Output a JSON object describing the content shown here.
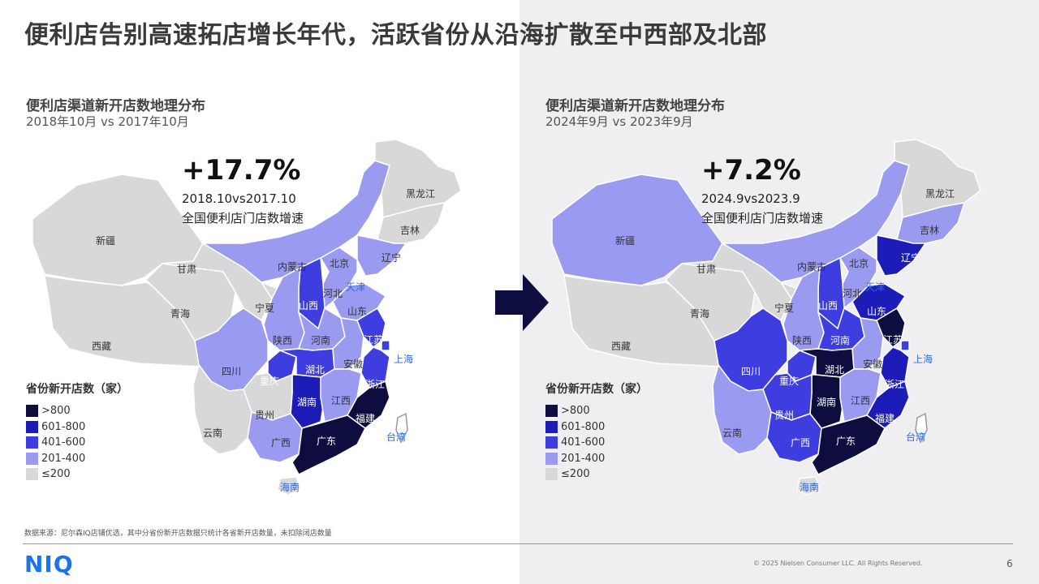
{
  "title": "便利店告别高速拓店增长年代，活跃省份从沿海扩散至中西部及北部",
  "colors": {
    "gt800": "#0d0d3f",
    "r601_800": "#1c1cb8",
    "r401_600": "#3d3de0",
    "r201_400": "#9a9af0",
    "le200": "#d8d8d8",
    "accent": "#2d6cdf"
  },
  "legend": {
    "title": "省份新开店数（家）",
    "items": [
      "&gt;800",
      "601-800",
      "401-600",
      "201-400",
      "≤200"
    ]
  },
  "maps": [
    {
      "title": "便利店渠道新开店数地理分布",
      "subtitle": "2018年10月 vs 2017年10月",
      "growth": "+17.7%",
      "growth_period": "2018.10vs2017.10",
      "growth_label": "全国便利店门店数增速",
      "provinces": {
        "新疆": "le200",
        "西藏": "le200",
        "青海": "le200",
        "甘肃": "le200",
        "内蒙古": "r201_400",
        "黑龙江": "le200",
        "吉林": "le200",
        "辽宁": "r201_400",
        "北京": "r201_400",
        "天津": "r201_400",
        "河北": "r201_400",
        "山西": "r401_600",
        "山东": "r201_400",
        "宁夏": "le200",
        "陕西": "r201_400",
        "河南": "r201_400",
        "四川": "r201_400",
        "重庆": "r401_600",
        "湖北": "r401_600",
        "安徽": "r201_400",
        "江苏": "r401_600",
        "上海": "r401_600",
        "浙江": "r401_600",
        "湖南": "r601_800",
        "江西": "r201_400",
        "福建": "gt800",
        "贵州": "le200",
        "云南": "le200",
        "广西": "r201_400",
        "广东": "gt800",
        "海南": "le200"
      }
    },
    {
      "title": "便利店渠道新开店数地理分布",
      "subtitle": "2024年9月 vs 2023年9月",
      "growth": "+7.2%",
      "growth_period": "2024.9vs2023.9",
      "growth_label": "全国便利店门店数增速",
      "provinces": {
        "新疆": "r201_400",
        "西藏": "le200",
        "青海": "le200",
        "甘肃": "le200",
        "内蒙古": "r201_400",
        "黑龙江": "le200",
        "吉林": "r201_400",
        "辽宁": "r601_800",
        "北京": "r201_400",
        "天津": "r201_400",
        "河北": "r201_400",
        "山西": "r401_600",
        "山东": "r601_800",
        "宁夏": "le200",
        "陕西": "r201_400",
        "河南": "r401_600",
        "四川": "r401_600",
        "重庆": "r401_600",
        "湖北": "gt800",
        "安徽": "r201_400",
        "江苏": "gt800",
        "上海": "r401_600",
        "浙江": "r601_800",
        "湖南": "gt800",
        "江西": "r201_400",
        "福建": "r601_800",
        "贵州": "r401_600",
        "云南": "r201_400",
        "广西": "r401_600",
        "广东": "gt800",
        "海南": "le200"
      }
    }
  ],
  "other_labels": [
    "台湾",
    "上海",
    "天津",
    "海南"
  ],
  "source": "数据来源：尼尔森IQ店铺优选，其中分省份新开店数据只统计各省新开店数量，未扣除闭店数量",
  "logo": "NIQ",
  "copyright": "© 2025 Nielsen Consumer LLC. All Rights Reserved.",
  "page_number": "6"
}
